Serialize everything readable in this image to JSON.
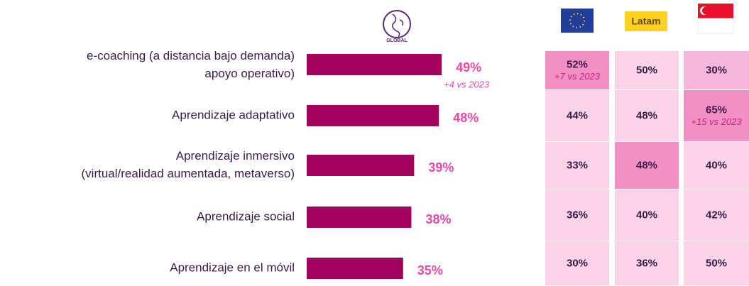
{
  "chart_data": {
    "type": "bar",
    "orientation": "horizontal",
    "global_label": "GLOBAL",
    "categories": [
      [
        "e-coaching (a distancia bajo demanda)",
        "apoyo operativo)"
      ],
      [
        "Aprendizaje adaptativo"
      ],
      [
        "Aprendizaje inmersivo",
        "(virtual/realidad aumentada, metaverso)"
      ],
      [
        "Aprendizaje social"
      ],
      [
        "Aprendizaje en el móvil"
      ]
    ],
    "values": [
      49,
      48,
      39,
      38,
      35
    ],
    "value_labels": [
      "49%",
      "48%",
      "39%",
      "38%",
      "35%"
    ],
    "notes": [
      "+4 vs 2023",
      null,
      null,
      null,
      null
    ],
    "color": "#a3005c",
    "label_color": "#e84aa4",
    "table": {
      "latam_label": "Latam",
      "rows": [
        [
          {
            "text": "52%",
            "note": "+7 vs 2023",
            "color": "#f290c6"
          },
          {
            "text": "50%",
            "color": "#fad3e7"
          },
          {
            "text": "30%",
            "color": "#f6b7da"
          }
        ],
        [
          {
            "text": "44%",
            "color": "#fad3e7"
          },
          {
            "text": "48%",
            "color": "#fad3e7"
          },
          {
            "text": "65%",
            "note": "+15 vs 2023",
            "color": "#f290c6"
          }
        ],
        [
          {
            "text": "33%",
            "color": "#fad3e7"
          },
          {
            "text": "48%",
            "color": "#f290c6"
          },
          {
            "text": "40%",
            "color": "#fad3e7"
          }
        ],
        [
          {
            "text": "36%",
            "color": "#fad3e7"
          },
          {
            "text": "40%",
            "color": "#fad3e7"
          },
          {
            "text": "42%",
            "color": "#fad3e7"
          }
        ],
        [
          {
            "text": "30%",
            "color": "#fad3e7"
          },
          {
            "text": "36%",
            "color": "#fad3e7"
          },
          {
            "text": "50%",
            "color": "#fad3e7"
          }
        ]
      ]
    }
  }
}
